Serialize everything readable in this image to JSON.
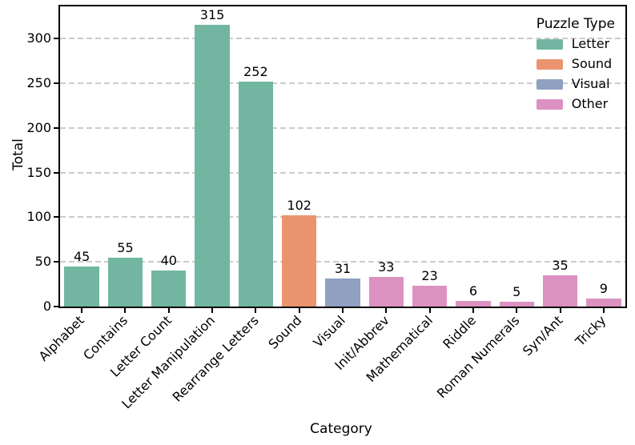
{
  "chart_data": {
    "type": "bar",
    "title": "",
    "xlabel": "Category",
    "ylabel": "Total",
    "ylim": [
      0,
      336
    ],
    "yticks": [
      0,
      50,
      100,
      150,
      200,
      250,
      300
    ],
    "grid": "horizontal-dashed",
    "legend": {
      "title": "Puzzle Type",
      "position": "upper-right",
      "entries": [
        {
          "label": "Letter",
          "color": "#72b6a1"
        },
        {
          "label": "Sound",
          "color": "#e9946f"
        },
        {
          "label": "Visual",
          "color": "#8fa0c0"
        },
        {
          "label": "Other",
          "color": "#dc92c1"
        }
      ]
    },
    "categories": [
      {
        "label": "Alphabet",
        "value": 45,
        "type": "Letter"
      },
      {
        "label": "Contains",
        "value": 55,
        "type": "Letter"
      },
      {
        "label": "Letter Count",
        "value": 40,
        "type": "Letter"
      },
      {
        "label": "Letter Manipulation",
        "value": 315,
        "type": "Letter"
      },
      {
        "label": "Rearrange Letters",
        "value": 252,
        "type": "Letter"
      },
      {
        "label": "Sound",
        "value": 102,
        "type": "Sound"
      },
      {
        "label": "Visual",
        "value": 31,
        "type": "Visual"
      },
      {
        "label": "Init/Abbrev",
        "value": 33,
        "type": "Other"
      },
      {
        "label": "Mathematical",
        "value": 23,
        "type": "Other"
      },
      {
        "label": "Riddle",
        "value": 6,
        "type": "Other"
      },
      {
        "label": "Roman Numerals",
        "value": 5,
        "type": "Other"
      },
      {
        "label": "Syn/Ant",
        "value": 35,
        "type": "Other"
      },
      {
        "label": "Tricky",
        "value": 9,
        "type": "Other"
      }
    ],
    "bar_width_fraction": 0.8,
    "axis_color": "#000000",
    "grid_color": "#cccccc",
    "background": "#ffffff"
  }
}
